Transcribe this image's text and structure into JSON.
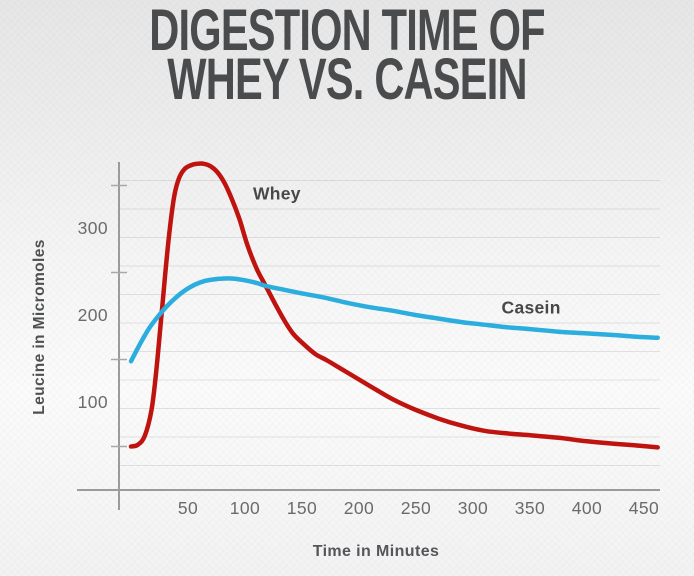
{
  "title": {
    "line1": "DIGESTION TIME OF",
    "line2": "WHEY VS. CASEIN"
  },
  "chart_data": {
    "type": "line",
    "title": "Digestion Time of Whey vs. Casein",
    "xlabel": "Time in Minutes",
    "ylabel": "Leucine in Micromoles",
    "xlim": [
      0,
      464
    ],
    "ylim": [
      0,
      377
    ],
    "x_ticks": [
      50,
      100,
      150,
      200,
      250,
      300,
      350,
      400,
      450
    ],
    "y_ticks": [
      100,
      200,
      300
    ],
    "y_minor_ticks": [
      50,
      150,
      250,
      350
    ],
    "grid": "faint horizontal pinstripes inside plot area",
    "legend": "inline series labels",
    "series": [
      {
        "name": "Whey",
        "color": "#bf1310",
        "label_pos": {
          "x": 128,
          "y": 340
        },
        "points": [
          [
            0,
            50
          ],
          [
            6,
            52
          ],
          [
            12,
            62
          ],
          [
            18,
            92
          ],
          [
            22,
            135
          ],
          [
            26,
            190
          ],
          [
            30,
            248
          ],
          [
            34,
            300
          ],
          [
            38,
            338
          ],
          [
            42,
            358
          ],
          [
            47,
            369
          ],
          [
            52,
            373
          ],
          [
            58,
            375
          ],
          [
            64,
            375
          ],
          [
            70,
            372
          ],
          [
            76,
            365
          ],
          [
            82,
            353
          ],
          [
            88,
            336
          ],
          [
            95,
            312
          ],
          [
            102,
            282
          ],
          [
            110,
            255
          ],
          [
            118,
            235
          ],
          [
            126,
            215
          ],
          [
            134,
            196
          ],
          [
            142,
            180
          ],
          [
            152,
            167
          ],
          [
            162,
            156
          ],
          [
            172,
            149
          ],
          [
            186,
            138
          ],
          [
            200,
            127
          ],
          [
            214,
            116
          ],
          [
            230,
            104
          ],
          [
            250,
            92
          ],
          [
            270,
            82
          ],
          [
            290,
            74
          ],
          [
            310,
            68
          ],
          [
            330,
            65
          ],
          [
            350,
            63
          ],
          [
            375,
            60
          ],
          [
            400,
            56
          ],
          [
            425,
            53
          ],
          [
            445,
            51
          ],
          [
            462,
            49
          ]
        ]
      },
      {
        "name": "Casein",
        "color": "#2badde",
        "label_pos": {
          "x": 351,
          "y": 209
        },
        "points": [
          [
            0,
            148
          ],
          [
            8,
            168
          ],
          [
            16,
            186
          ],
          [
            24,
            200
          ],
          [
            32,
            212
          ],
          [
            40,
            222
          ],
          [
            48,
            230
          ],
          [
            56,
            236
          ],
          [
            64,
            240
          ],
          [
            72,
            242
          ],
          [
            80,
            243
          ],
          [
            90,
            243
          ],
          [
            100,
            241
          ],
          [
            110,
            238
          ],
          [
            120,
            234
          ],
          [
            135,
            230
          ],
          [
            150,
            226
          ],
          [
            170,
            221
          ],
          [
            190,
            215
          ],
          [
            210,
            210
          ],
          [
            230,
            206
          ],
          [
            250,
            201
          ],
          [
            270,
            197
          ],
          [
            290,
            193
          ],
          [
            310,
            190
          ],
          [
            330,
            187
          ],
          [
            350,
            185
          ],
          [
            375,
            182
          ],
          [
            400,
            180
          ],
          [
            425,
            178
          ],
          [
            445,
            176
          ],
          [
            462,
            175
          ]
        ]
      }
    ]
  },
  "colors": {
    "whey_line": "#bf1310",
    "casein_line": "#2badde",
    "title_text": "#494b4d",
    "axis_line": "#9b9b9b",
    "tick_label": "#6b6b6b",
    "axis_title": "#4e5052",
    "series_label": "#46484a"
  }
}
